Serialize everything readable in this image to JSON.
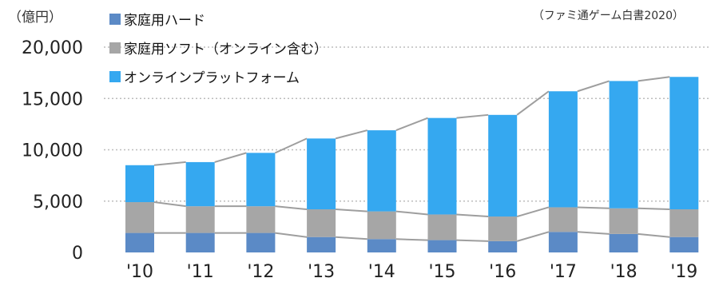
{
  "chart_data": {
    "type": "bar",
    "stacked": true,
    "unit_label": "（億円）",
    "source_note": "（ファミ通ゲーム白書2020）",
    "categories": [
      "'10",
      "'11",
      "'12",
      "'13",
      "'14",
      "'15",
      "'16",
      "'17",
      "'18",
      "'19"
    ],
    "series": [
      {
        "name": "家庭用ハード",
        "color": "#5b8ac6",
        "values": [
          1900,
          1900,
          1900,
          1500,
          1300,
          1200,
          1100,
          2000,
          1800,
          1500
        ]
      },
      {
        "name": "家庭用ソフト（オンライン含む）",
        "color": "#a6a6a6",
        "values": [
          3000,
          2600,
          2600,
          2700,
          2700,
          2500,
          2400,
          2400,
          2500,
          2700
        ]
      },
      {
        "name": "オンラインプラットフォーム",
        "color": "#35a8f0",
        "values": [
          3600,
          4300,
          5200,
          6900,
          7900,
          9400,
          9900,
          11300,
          12400,
          12900
        ]
      }
    ],
    "ylim": [
      0,
      20000
    ],
    "yticks": [
      0,
      5000,
      10000,
      15000,
      20000
    ],
    "ytick_labels": [
      "0",
      "5,000",
      "10,000",
      "15,000",
      "20,000"
    ],
    "grid": "dotted horizontal",
    "legend": "top-left",
    "connector_lines": true
  }
}
